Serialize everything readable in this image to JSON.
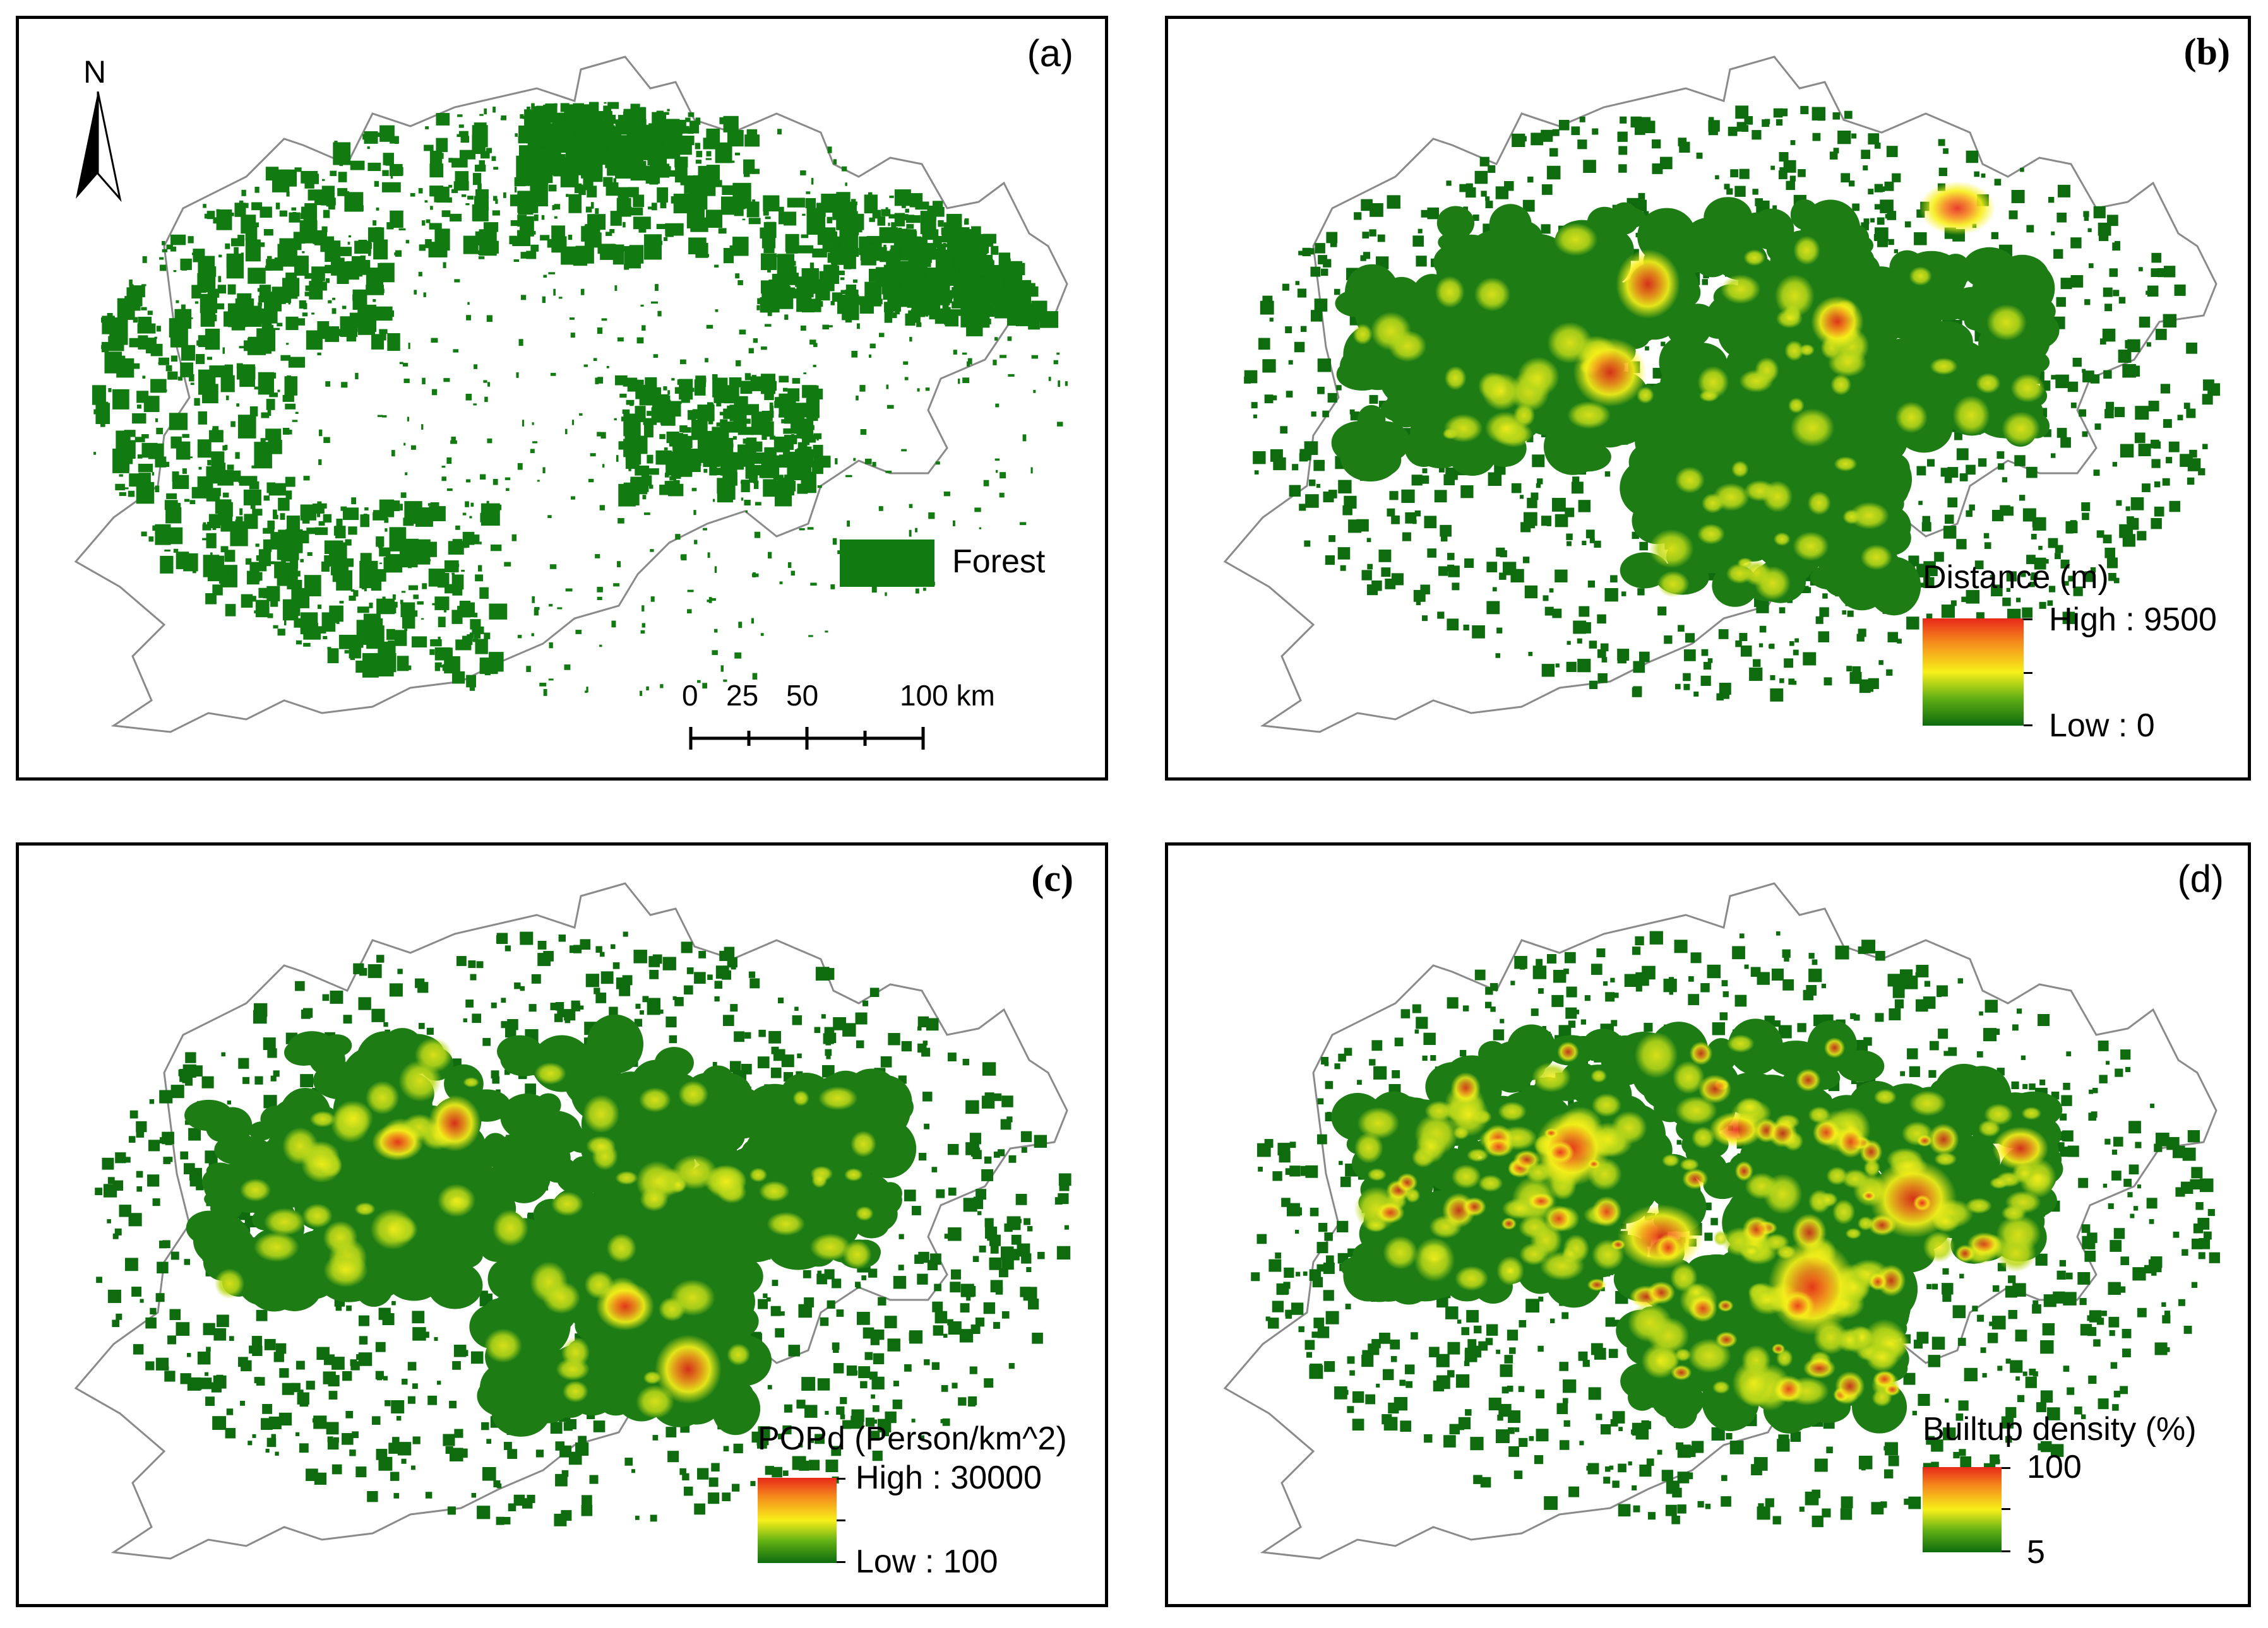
{
  "panels": {
    "a": {
      "label": "(a)",
      "north_label": "N",
      "legend": {
        "name": "Forest",
        "color": "#117a11"
      },
      "scale_bar": {
        "ticks": [
          "0",
          "25",
          "50",
          "100 km"
        ]
      }
    },
    "b": {
      "label": "(b)",
      "legend": {
        "title": "Distance (m)",
        "high": "High : 9500",
        "low": "Low : 0"
      }
    },
    "c": {
      "label": "(c)",
      "legend": {
        "title": "POPd (Person/km^2)",
        "high": "High : 30000",
        "low": "Low : 100"
      }
    },
    "d": {
      "label": "(d)",
      "legend": {
        "title": "Builtup density (%)",
        "high": "100",
        "low": "5"
      }
    }
  },
  "colors": {
    "forest": "#117a11",
    "ramp_high": "#e8281a",
    "ramp_mid": "#f7f01a",
    "ramp_low": "#0e6b0e",
    "outline": "#8a8a8a"
  }
}
